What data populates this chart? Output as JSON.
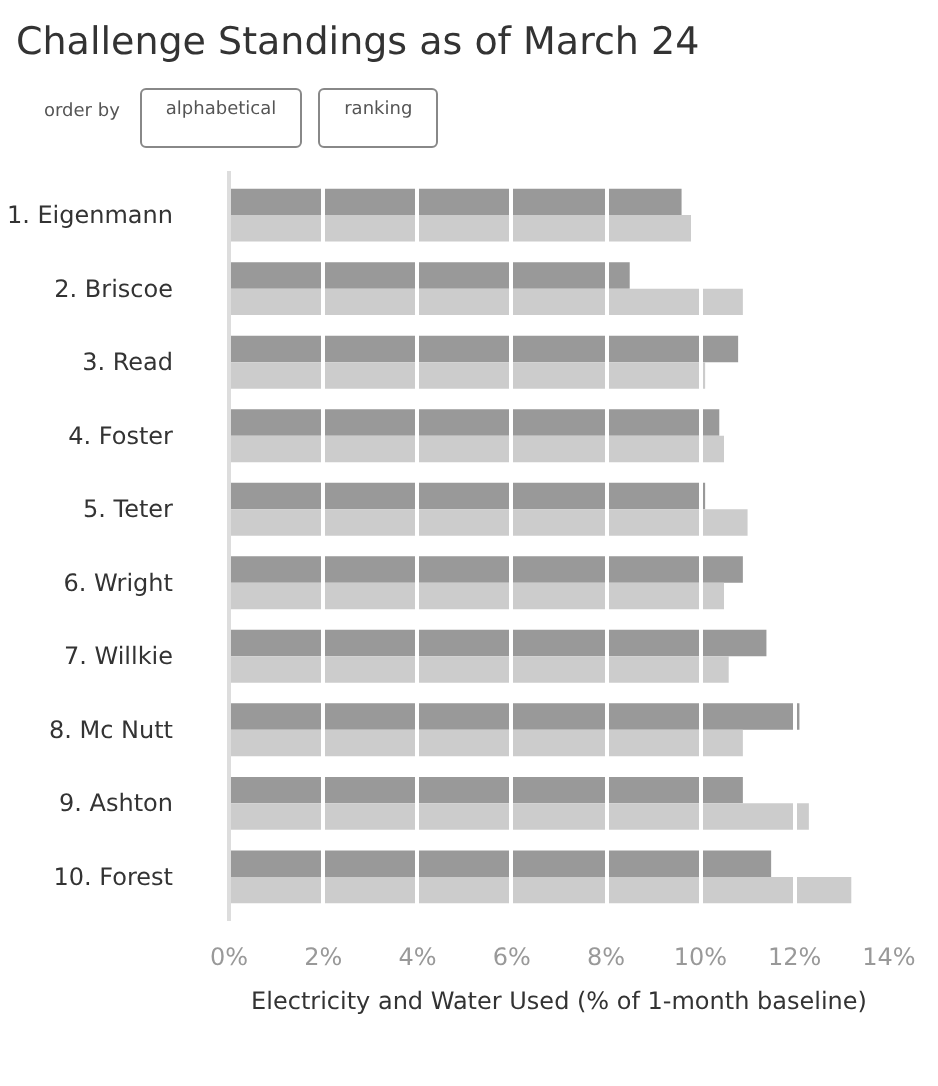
{
  "chart_data": {
    "type": "bar",
    "orientation": "horizontal",
    "title": "Challenge Standings as of March 24",
    "annotations": [
      "order by",
      "alphabetical",
      "ranking"
    ],
    "categories": [
      "1. Eigenmann",
      "2. Briscoe",
      "3. Read",
      "4. Foster",
      "5. Teter",
      "6. Wright",
      "7. Willkie",
      "8. Mc Nutt",
      "9. Ashton",
      "10. Forest"
    ],
    "series": [
      {
        "color": "#999999",
        "values": [
          9.6,
          8.5,
          10.8,
          10.4,
          10.1,
          10.9,
          11.4,
          12.1,
          10.9,
          11.5
        ]
      },
      {
        "color": "#cccccc",
        "values": [
          9.8,
          10.9,
          10.1,
          10.5,
          11.0,
          10.5,
          10.6,
          10.9,
          12.3,
          13.2
        ]
      }
    ],
    "xlabel": "Electricity and Water Used (% of 1-month baseline)",
    "xlim": [
      0,
      14
    ],
    "xticks": [
      {
        "value": 0,
        "label": "0%"
      },
      {
        "value": 2,
        "label": "2%"
      },
      {
        "value": 4,
        "label": "4%"
      },
      {
        "value": 6,
        "label": "6%"
      },
      {
        "value": 8,
        "label": "8%"
      },
      {
        "value": 10,
        "label": "10%"
      },
      {
        "value": 12,
        "label": "12%"
      },
      {
        "value": 14,
        "label": "14%"
      }
    ],
    "grid": "x"
  }
}
